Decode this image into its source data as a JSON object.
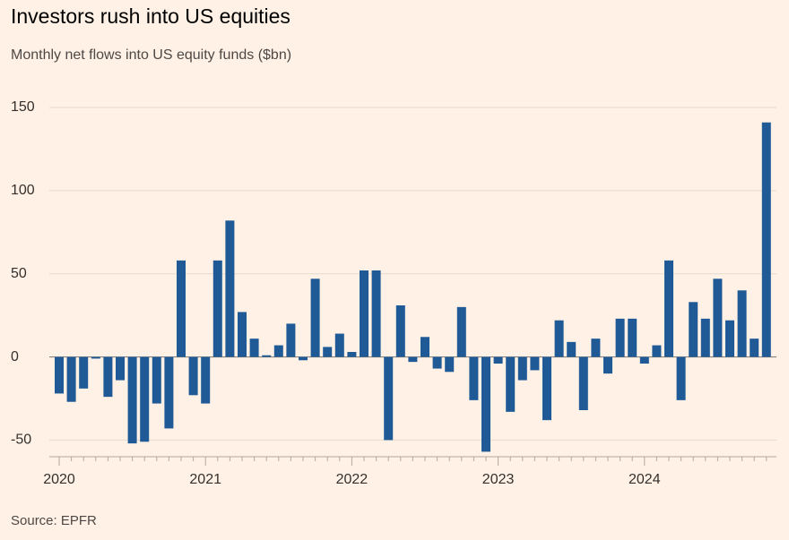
{
  "chart_data": {
    "type": "bar",
    "title": "Investors rush into US equities",
    "subtitle": "Monthly net flows into US equity funds ($bn)",
    "source": "Source: EPFR",
    "categories": [
      "2020",
      null,
      null,
      null,
      null,
      null,
      null,
      null,
      null,
      null,
      null,
      null,
      "2021",
      null,
      null,
      null,
      null,
      null,
      null,
      null,
      null,
      null,
      null,
      null,
      "2022",
      null,
      null,
      null,
      null,
      null,
      null,
      null,
      null,
      null,
      null,
      null,
      "2023",
      null,
      null,
      null,
      null,
      null,
      null,
      null,
      null,
      null,
      null,
      null,
      "2024",
      null,
      null,
      null,
      null,
      null,
      null,
      null,
      null,
      null,
      null
    ],
    "values": [
      -22,
      -27,
      -19,
      -1,
      -24,
      -14,
      -52,
      -51,
      -28,
      -43,
      58,
      -23,
      -28,
      58,
      82,
      27,
      11,
      1,
      7,
      20,
      -2,
      47,
      6,
      14,
      3,
      52,
      52,
      -50,
      31,
      -3,
      12,
      -7,
      -9,
      30,
      -26,
      -57,
      -4,
      -33,
      -14,
      -8,
      -38,
      22,
      9,
      -32,
      11,
      -10,
      23,
      23,
      -4,
      7,
      58,
      -26,
      33,
      23,
      47,
      22,
      40,
      11,
      141
    ],
    "color": "#1f5a96",
    "ylim": [
      -60,
      150
    ],
    "yticks": [
      -50,
      0,
      50,
      100,
      150
    ],
    "grid": true
  }
}
